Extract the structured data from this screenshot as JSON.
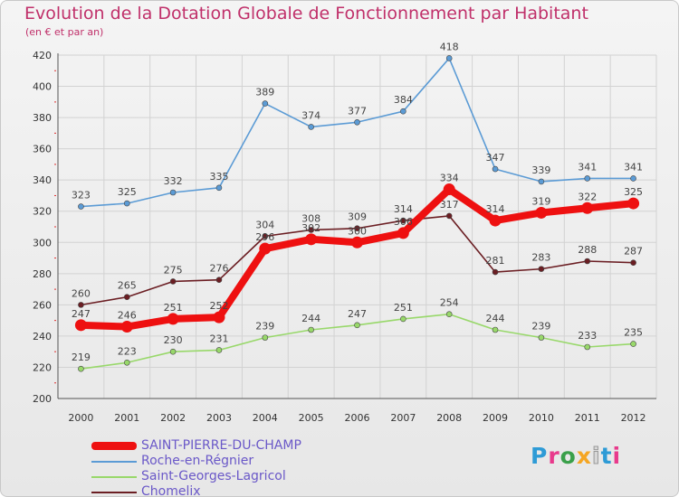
{
  "header": {
    "title": "Evolution de la Dotation Globale de Fonctionnement par Habitant",
    "subtitle": "(en € et par an)"
  },
  "logo": {
    "text": "Proxiti"
  },
  "chart_data": {
    "type": "line",
    "title": "Evolution de la Dotation Globale de Fonctionnement par Habitant",
    "subtitle": "(en € et par an)",
    "x": [
      "2000",
      "2001",
      "2002",
      "2003",
      "2004",
      "2005",
      "2006",
      "2007",
      "2008",
      "2009",
      "2010",
      "2011",
      "2012"
    ],
    "ylim": [
      200,
      420
    ],
    "yticks": [
      200,
      220,
      240,
      260,
      280,
      300,
      320,
      340,
      360,
      380,
      400,
      420
    ],
    "grid": true,
    "legend_position": "bottom-left",
    "series": [
      {
        "name": "Roche-en-Régnier",
        "color": "#5b9bd5",
        "values": [
          323,
          325,
          332,
          335,
          389,
          374,
          377,
          384,
          418,
          347,
          339,
          341,
          341
        ]
      },
      {
        "name": "Chomelix",
        "color": "#6b1e23",
        "values": [
          260,
          265,
          275,
          276,
          304,
          308,
          309,
          314,
          317,
          281,
          283,
          288,
          287
        ]
      },
      {
        "name": "Saint-Georges-Lagricol",
        "color": "#98d86a",
        "values": [
          219,
          223,
          230,
          231,
          239,
          244,
          247,
          251,
          254,
          244,
          239,
          233,
          235
        ]
      },
      {
        "name": "SAINT-PIERRE-DU-CHAMP",
        "color": "#ee1010",
        "values": [
          247,
          246,
          251,
          252,
          296,
          302,
          300,
          306,
          334,
          314,
          319,
          322,
          325
        ]
      }
    ],
    "legend_order": [
      "SAINT-PIERRE-DU-CHAMP",
      "Roche-en-Régnier",
      "Saint-Georges-Lagricol",
      "Chomelix"
    ]
  }
}
